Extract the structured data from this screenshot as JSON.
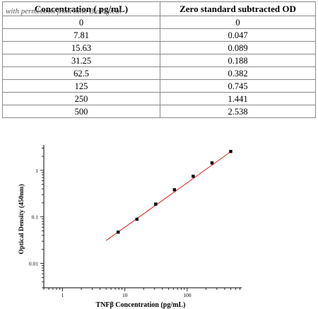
{
  "table": {
    "watermark": "with permission from Sino Biological",
    "headers": [
      "Concentration ( pg/mL)",
      "Zero standard subtracted OD"
    ],
    "rows": [
      [
        "0",
        "0"
      ],
      [
        "7.81",
        "0.047"
      ],
      [
        "15.63",
        "0.089"
      ],
      [
        "31.25",
        "0.188"
      ],
      [
        "62.5",
        "0.382"
      ],
      [
        "125",
        "0.745"
      ],
      [
        "250",
        "1.441"
      ],
      [
        "500",
        "2.538"
      ]
    ]
  },
  "chart_data": {
    "type": "scatter",
    "xscale": "log",
    "yscale": "log",
    "xlim": [
      0.5,
      750
    ],
    "ylim": [
      0.003,
      3.5
    ],
    "xticks": [
      "1",
      "10",
      "100"
    ],
    "yticks": [
      "0.01",
      "0.1",
      "1"
    ],
    "xlabel": "TNFβ  Concentration (pg/mL)",
    "ylabel": "Optical Density (450nm)",
    "grid": false,
    "points": {
      "x": [
        7.81,
        15.63,
        31.25,
        62.5,
        125,
        250,
        500
      ],
      "y": [
        0.047,
        0.089,
        0.188,
        0.382,
        0.745,
        1.441,
        2.538
      ]
    },
    "fit_line": {
      "x": [
        5,
        500
      ],
      "y": [
        0.031,
        2.5
      ]
    },
    "colors": {
      "points": "#000000",
      "fit_line": "#e02020"
    }
  }
}
